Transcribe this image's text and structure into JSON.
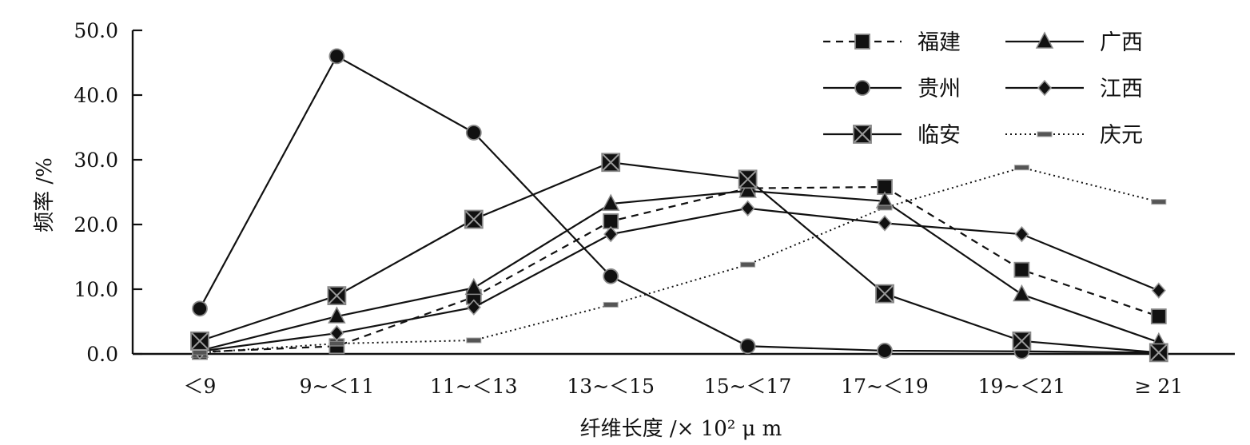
{
  "chart_data": {
    "type": "line",
    "categories": [
      "＜9",
      "9~＜11",
      "11~＜13",
      "13~＜15",
      "15~＜17",
      "17~＜19",
      "19~＜21",
      "≥ 21"
    ],
    "xlabel": "纤维长度 /× 10² μ m",
    "ylabel": "频率 /%",
    "ylim": [
      0,
      50
    ],
    "yticks": [
      "0.0",
      "10.0",
      "20.0",
      "30.0",
      "40.0",
      "50.0"
    ],
    "grid": false,
    "legend_position": "top-right",
    "series": [
      {
        "name": "福建",
        "marker": "square",
        "dash": "dashed",
        "values": [
          0.3,
          1.2,
          8.8,
          20.5,
          25.6,
          25.8,
          13.0,
          5.8
        ]
      },
      {
        "name": "广西",
        "marker": "triangle",
        "dash": "solid",
        "values": [
          0.5,
          5.8,
          10.2,
          23.2,
          25.2,
          23.6,
          9.2,
          1.8
        ]
      },
      {
        "name": "贵州",
        "marker": "circle",
        "dash": "solid",
        "values": [
          7.0,
          46.0,
          34.2,
          12.0,
          1.2,
          0.5,
          0.4,
          0.2
        ]
      },
      {
        "name": "江西",
        "marker": "diamond",
        "dash": "solid",
        "values": [
          0.4,
          3.2,
          7.2,
          18.5,
          22.5,
          20.2,
          18.5,
          9.8
        ]
      },
      {
        "name": "临安",
        "marker": "xsquare",
        "dash": "solid",
        "values": [
          2.0,
          9.0,
          20.8,
          29.6,
          27.0,
          9.3,
          2.0,
          0.2
        ]
      },
      {
        "name": "庆元",
        "marker": "dash",
        "dash": "dotted",
        "values": [
          0.2,
          1.6,
          2.1,
          7.6,
          13.8,
          22.6,
          28.8,
          23.5
        ]
      }
    ]
  }
}
